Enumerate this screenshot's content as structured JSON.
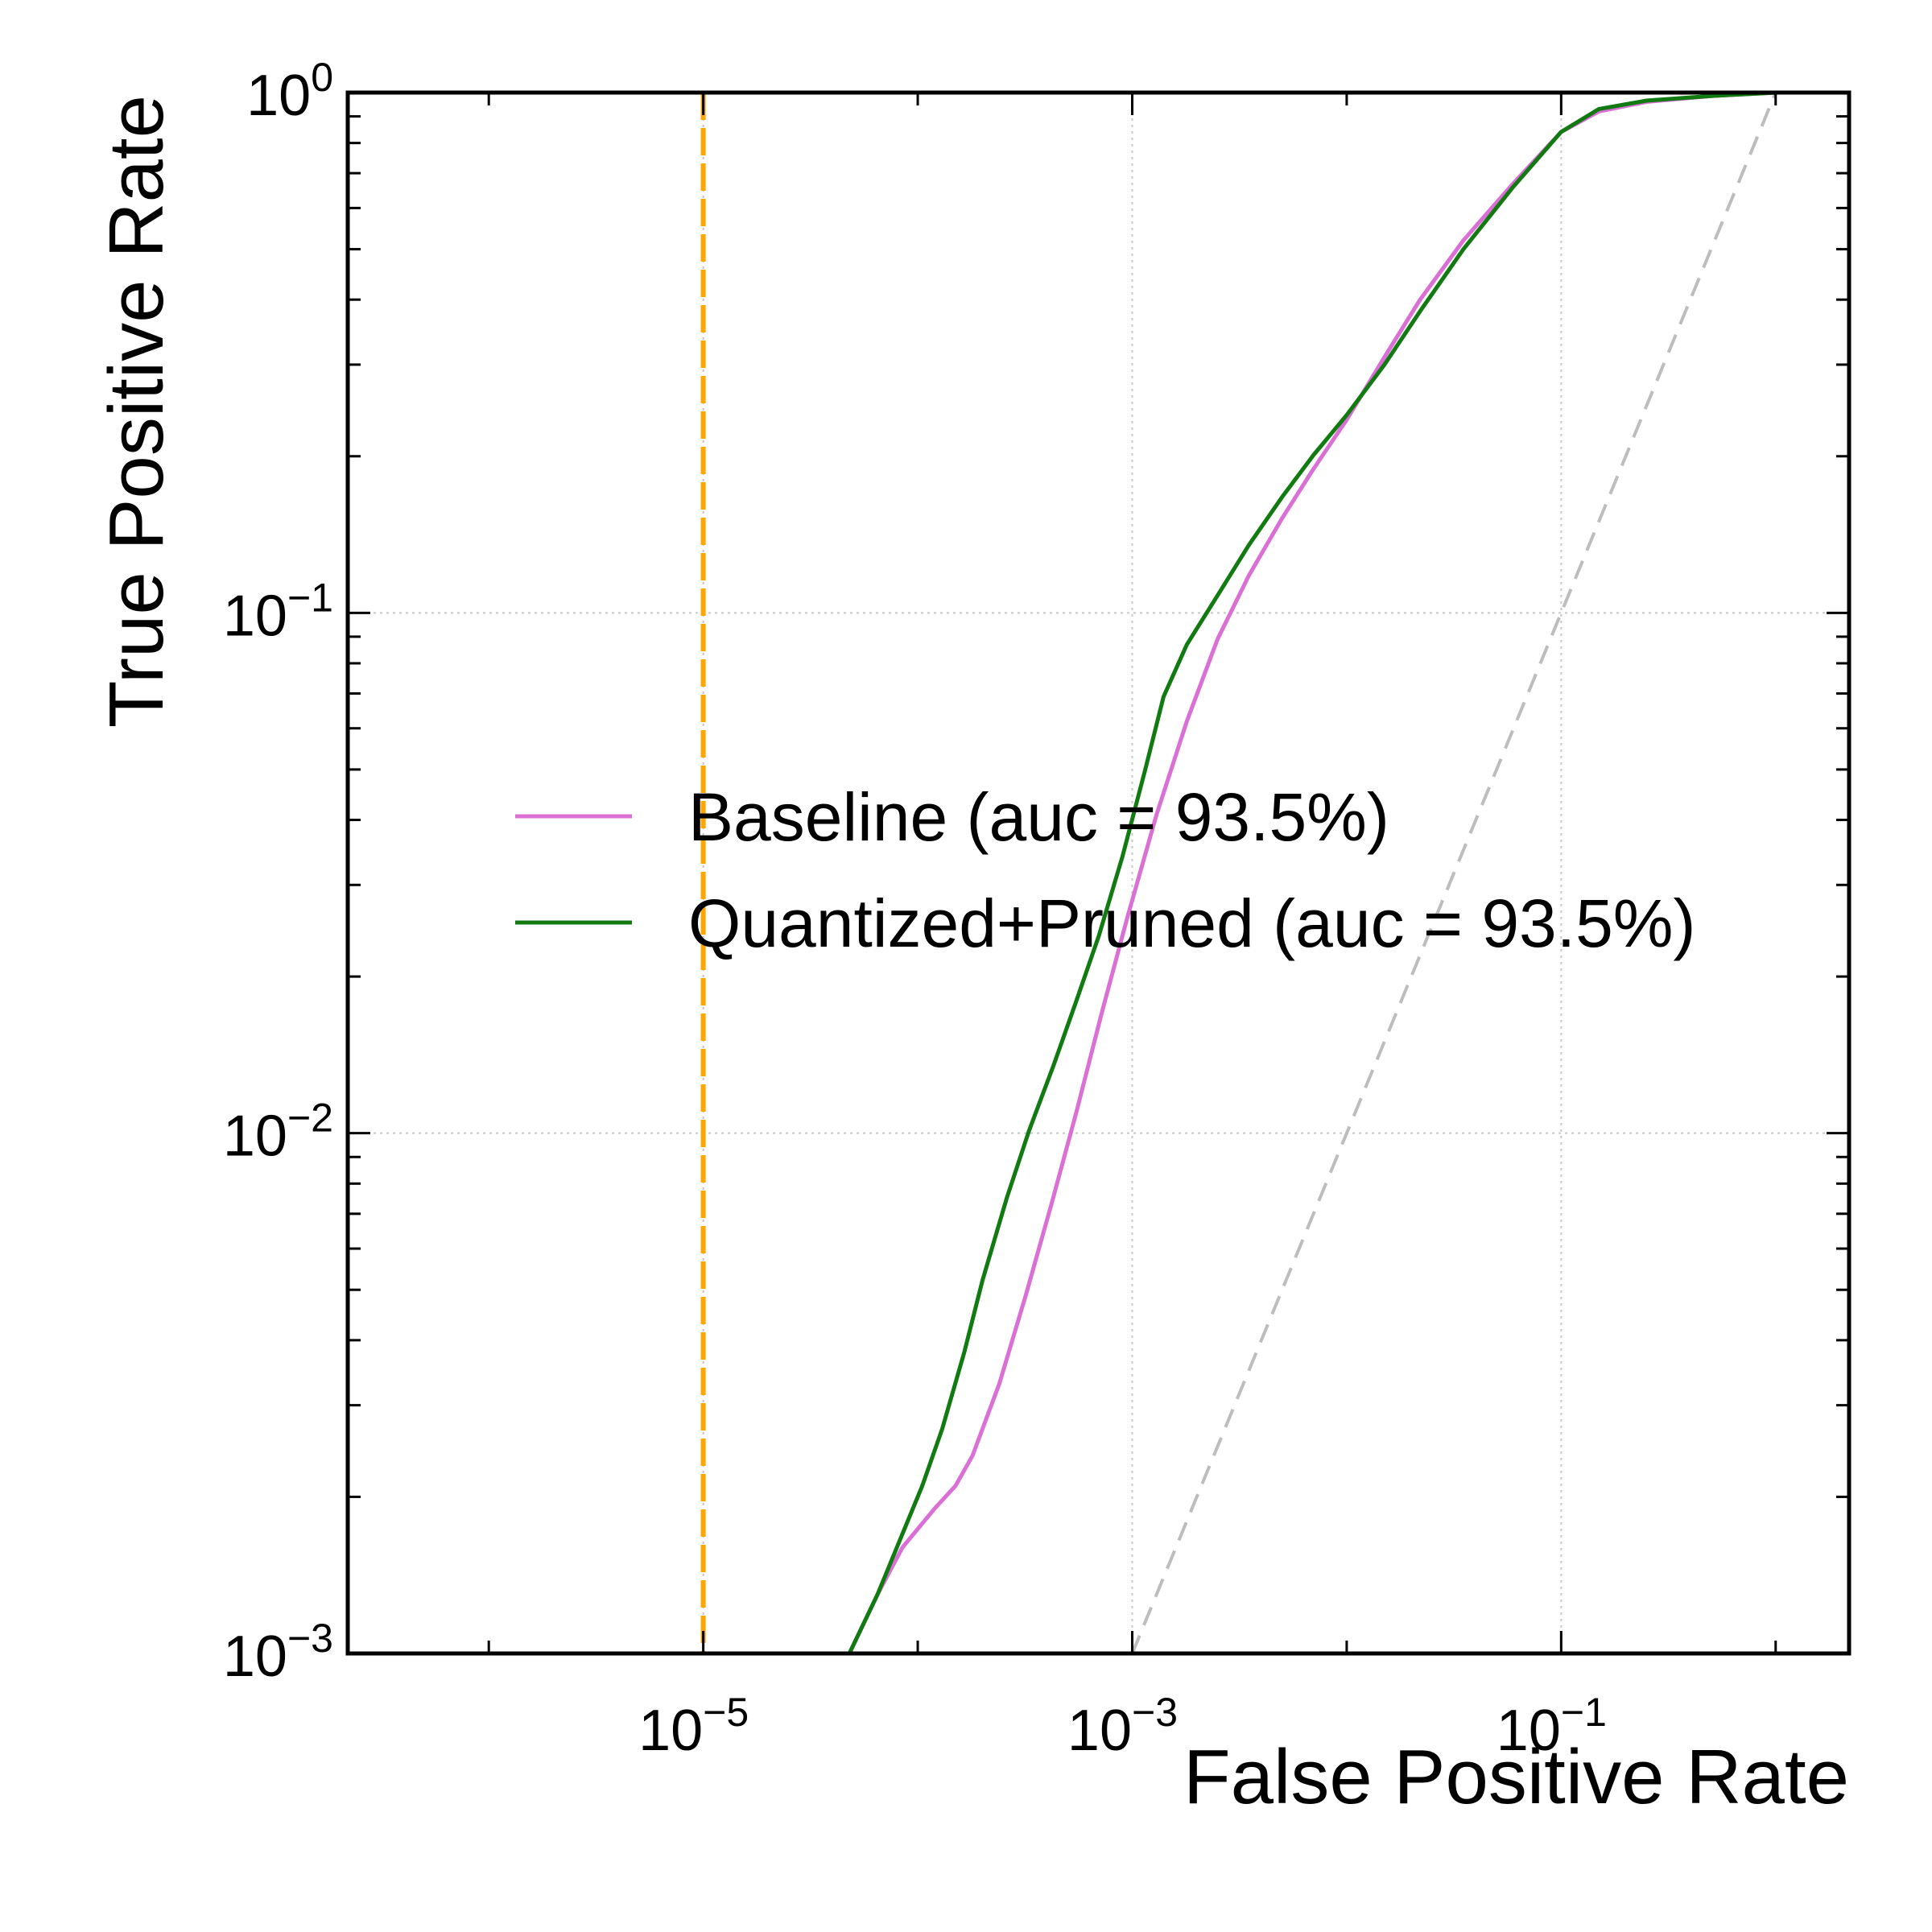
{
  "chart_data": {
    "type": "line",
    "xlabel": "False Positive Rate",
    "ylabel": "True Positive Rate",
    "xscale": "log",
    "yscale": "log",
    "xlim": [
      2.2e-07,
      2.2
    ],
    "ylim": [
      0.001,
      1.0
    ],
    "grid": true,
    "legend_position": "center-left",
    "x_ticks": [
      {
        "value": 1e-05,
        "base": "10",
        "exp": "−5"
      },
      {
        "value": 0.001,
        "base": "10",
        "exp": "−3"
      },
      {
        "value": 0.1,
        "base": "10",
        "exp": "−1"
      }
    ],
    "y_ticks": [
      {
        "value": 0.001,
        "base": "10",
        "exp": "−3"
      },
      {
        "value": 0.01,
        "base": "10",
        "exp": "−2"
      },
      {
        "value": 0.1,
        "base": "10",
        "exp": "−1"
      },
      {
        "value": 1,
        "base": "10",
        "exp": "0"
      }
    ],
    "series": [
      {
        "name": "Baseline (auc = 93.5%)",
        "color": "#da70d6",
        "points": [
          [
            4.8e-05,
            0.001
          ],
          [
            6.5e-05,
            0.0013
          ],
          [
            8.5e-05,
            0.0016
          ],
          [
            0.00012,
            0.0019
          ],
          [
            0.00015,
            0.0021
          ],
          [
            0.00018,
            0.0024
          ],
          [
            0.00024,
            0.0033
          ],
          [
            0.00032,
            0.0049
          ],
          [
            0.00042,
            0.0073
          ],
          [
            0.00055,
            0.011
          ],
          [
            0.00072,
            0.017
          ],
          [
            0.00095,
            0.026
          ],
          [
            0.0013,
            0.041
          ],
          [
            0.0018,
            0.062
          ],
          [
            0.0025,
            0.089
          ],
          [
            0.0035,
            0.118
          ],
          [
            0.005,
            0.152
          ],
          [
            0.007,
            0.189
          ],
          [
            0.01,
            0.235
          ],
          [
            0.015,
            0.31
          ],
          [
            0.022,
            0.4
          ],
          [
            0.035,
            0.52
          ],
          [
            0.06,
            0.67
          ],
          [
            0.1,
            0.84
          ],
          [
            0.15,
            0.92
          ],
          [
            0.25,
            0.96
          ],
          [
            0.5,
            0.985
          ],
          [
            1.0,
            1.0
          ]
        ]
      },
      {
        "name": "Quantized+Pruned (auc = 93.5%)",
        "color": "#117a11",
        "points": [
          [
            4.8e-05,
            0.001
          ],
          [
            6.5e-05,
            0.0013
          ],
          [
            8.5e-05,
            0.0017
          ],
          [
            0.000105,
            0.0021
          ],
          [
            0.00013,
            0.0027
          ],
          [
            0.000165,
            0.0038
          ],
          [
            0.0002,
            0.0052
          ],
          [
            0.00026,
            0.0075
          ],
          [
            0.00033,
            0.0101
          ],
          [
            0.00043,
            0.0135
          ],
          [
            0.00055,
            0.018
          ],
          [
            0.0007,
            0.024
          ],
          [
            0.0009,
            0.034
          ],
          [
            0.00115,
            0.05
          ],
          [
            0.0014,
            0.069
          ],
          [
            0.0018,
            0.087
          ],
          [
            0.0025,
            0.108
          ],
          [
            0.0035,
            0.135
          ],
          [
            0.005,
            0.167
          ],
          [
            0.007,
            0.201
          ],
          [
            0.01,
            0.24
          ],
          [
            0.015,
            0.3
          ],
          [
            0.022,
            0.38
          ],
          [
            0.035,
            0.5
          ],
          [
            0.06,
            0.66
          ],
          [
            0.1,
            0.84
          ],
          [
            0.15,
            0.93
          ],
          [
            0.25,
            0.965
          ],
          [
            0.5,
            0.985
          ],
          [
            1.0,
            1.0
          ]
        ]
      }
    ],
    "reference_lines": [
      {
        "kind": "diagonal",
        "color": "#bdbdbd",
        "style": "dashed",
        "from": [
          0.001,
          0.001
        ],
        "to": [
          1.0,
          1.0
        ]
      },
      {
        "kind": "vertical",
        "color": "#ffa500",
        "style": "dashed",
        "x": 1e-05
      }
    ]
  }
}
